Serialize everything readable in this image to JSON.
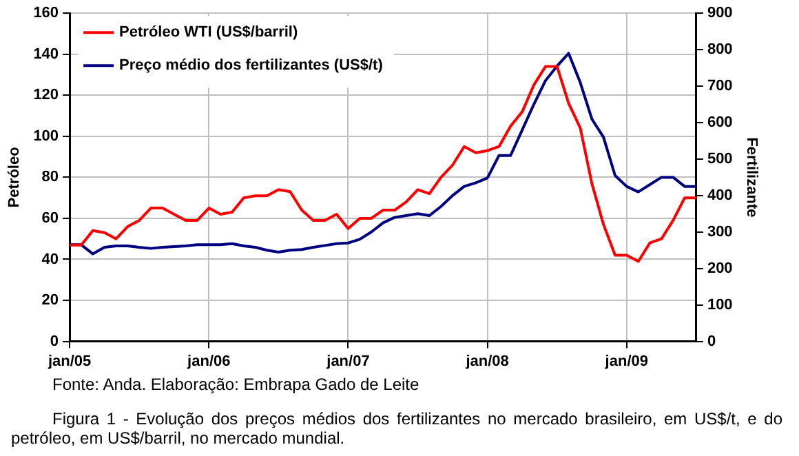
{
  "chart_data": {
    "type": "line",
    "categories": [
      "jan/05",
      null,
      null,
      null,
      null,
      null,
      null,
      null,
      null,
      null,
      null,
      null,
      "jan/06",
      null,
      null,
      null,
      null,
      null,
      null,
      null,
      null,
      null,
      null,
      null,
      "jan/07",
      null,
      null,
      null,
      null,
      null,
      null,
      null,
      null,
      null,
      null,
      null,
      "jan/08",
      null,
      null,
      null,
      null,
      null,
      null,
      null,
      null,
      null,
      null,
      null,
      "jan/09",
      null,
      null,
      null,
      null,
      null,
      null
    ],
    "series": [
      {
        "name": "Petróleo WTI (US$/barril)",
        "color": "#ff0000",
        "values": [
          47,
          47,
          54,
          53,
          50,
          56,
          59,
          65,
          65,
          62,
          59,
          59,
          65,
          62,
          63,
          70,
          71,
          71,
          74,
          73,
          64,
          59,
          59,
          62,
          55,
          60,
          60,
          64,
          64,
          68,
          74,
          72,
          80,
          86,
          95,
          92,
          93,
          95,
          105,
          112,
          125,
          134,
          134,
          116,
          104,
          77,
          57,
          42,
          42,
          39,
          48,
          50,
          59,
          70,
          70
        ]
      },
      {
        "name": "Preço médio dos fertilizantes (US$/t)",
        "color": "#000080",
        "axis": "y2",
        "values": [
          265,
          265,
          240,
          258,
          262,
          262,
          258,
          255,
          258,
          260,
          262,
          265,
          265,
          265,
          268,
          262,
          258,
          250,
          245,
          250,
          252,
          258,
          263,
          268,
          270,
          280,
          300,
          325,
          340,
          345,
          350,
          345,
          370,
          400,
          425,
          435,
          448,
          510,
          510,
          580,
          650,
          715,
          755,
          790,
          710,
          610,
          560,
          455,
          425,
          410,
          430,
          450,
          450,
          425,
          425
        ]
      }
    ],
    "ylabel": "Petróleo",
    "y2label": "Fertilizante",
    "ylim": [
      0,
      160
    ],
    "yticks": [
      0,
      20,
      40,
      60,
      80,
      100,
      120,
      140,
      160
    ],
    "y2lim": [
      0,
      900
    ],
    "y2ticks": [
      0,
      100,
      200,
      300,
      400,
      500,
      600,
      700,
      800,
      900
    ],
    "grid": true,
    "legend": "top left",
    "marker": "none",
    "line_style": "solid",
    "annotations": [
      "Fonte: Anda. Elaboração: Embrapa Gado de Leite",
      "Figura 1 - Evolução dos preços médios dos fertilizantes no mercado brasileiro, em US$/t, e do petróleo, em US$/barril, no mercado mundial."
    ]
  }
}
